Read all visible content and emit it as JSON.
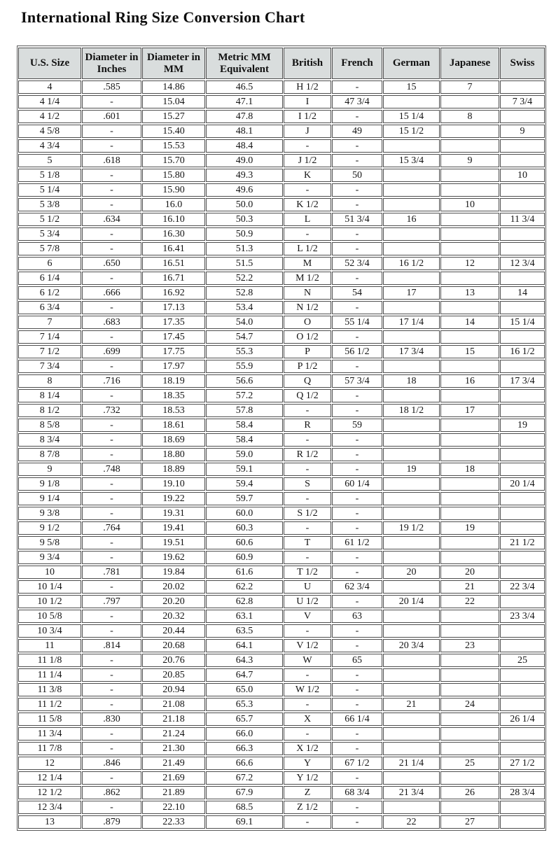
{
  "title": "International Ring Size Conversion Chart",
  "table": {
    "headers": [
      "U.S. Size",
      "Diameter in Inches",
      "Diameter in MM",
      "Metric MM Equivalent",
      "British",
      "French",
      "German",
      "Japanese",
      "Swiss"
    ],
    "rows": [
      [
        "4",
        ".585",
        "14.86",
        "46.5",
        "H 1/2",
        "-",
        "15",
        "7",
        ""
      ],
      [
        "4 1/4",
        "-",
        "15.04",
        "47.1",
        "I",
        "47 3/4",
        "",
        "",
        "7 3/4"
      ],
      [
        "4 1/2",
        ".601",
        "15.27",
        "47.8",
        "I 1/2",
        "-",
        "15 1/4",
        "8",
        ""
      ],
      [
        "4 5/8",
        "-",
        "15.40",
        "48.1",
        "J",
        "49",
        "15 1/2",
        "",
        "9"
      ],
      [
        "4 3/4",
        "-",
        "15.53",
        "48.4",
        "-",
        "-",
        "",
        "",
        ""
      ],
      [
        "5",
        ".618",
        "15.70",
        "49.0",
        "J 1/2",
        "-",
        "15 3/4",
        "9",
        ""
      ],
      [
        "5 1/8",
        "-",
        "15.80",
        "49.3",
        "K",
        "50",
        "",
        "",
        "10"
      ],
      [
        "5 1/4",
        "-",
        "15.90",
        "49.6",
        "-",
        "-",
        "",
        "",
        ""
      ],
      [
        "5 3/8",
        "-",
        "16.0",
        "50.0",
        "K 1/2",
        "-",
        "",
        "10",
        ""
      ],
      [
        "5 1/2",
        ".634",
        "16.10",
        "50.3",
        "L",
        "51 3/4",
        "16",
        "",
        "11 3/4"
      ],
      [
        "5 3/4",
        "-",
        "16.30",
        "50.9",
        "-",
        "-",
        "",
        "",
        ""
      ],
      [
        "5 7/8",
        "-",
        "16.41",
        "51.3",
        "L 1/2",
        "-",
        "",
        "",
        ""
      ],
      [
        "6",
        ".650",
        "16.51",
        "51.5",
        "M",
        "52 3/4",
        "16 1/2",
        "12",
        "12 3/4"
      ],
      [
        "6 1/4",
        "-",
        "16.71",
        "52.2",
        "M 1/2",
        "-",
        "",
        "",
        ""
      ],
      [
        "6 1/2",
        ".666",
        "16.92",
        "52.8",
        "N",
        "54",
        "17",
        "13",
        "14"
      ],
      [
        "6 3/4",
        "-",
        "17.13",
        "53.4",
        "N 1/2",
        "-",
        "",
        "",
        ""
      ],
      [
        "7",
        ".683",
        "17.35",
        "54.0",
        "O",
        "55 1/4",
        "17 1/4",
        "14",
        "15 1/4"
      ],
      [
        "7 1/4",
        "-",
        "17.45",
        "54.7",
        "O 1/2",
        "-",
        "",
        "",
        ""
      ],
      [
        "7 1/2",
        ".699",
        "17.75",
        "55.3",
        "P",
        "56 1/2",
        "17 3/4",
        "15",
        "16 1/2"
      ],
      [
        "7 3/4",
        "-",
        "17.97",
        "55.9",
        "P 1/2",
        "-",
        "",
        "",
        ""
      ],
      [
        "8",
        ".716",
        "18.19",
        "56.6",
        "Q",
        "57 3/4",
        "18",
        "16",
        "17 3/4"
      ],
      [
        "8 1/4",
        "-",
        "18.35",
        "57.2",
        "Q 1/2",
        "-",
        "",
        "",
        ""
      ],
      [
        "8 1/2",
        ".732",
        "18.53",
        "57.8",
        "-",
        "-",
        "18 1/2",
        "17",
        ""
      ],
      [
        "8 5/8",
        "-",
        "18.61",
        "58.4",
        "R",
        "59",
        "",
        "",
        "19"
      ],
      [
        "8 3/4",
        "-",
        "18.69",
        "58.4",
        "-",
        "-",
        "",
        "",
        ""
      ],
      [
        "8 7/8",
        "-",
        "18.80",
        "59.0",
        "R 1/2",
        "-",
        "",
        "",
        ""
      ],
      [
        "9",
        ".748",
        "18.89",
        "59.1",
        "-",
        "-",
        "19",
        "18",
        ""
      ],
      [
        "9 1/8",
        "-",
        "19.10",
        "59.4",
        "S",
        "60 1/4",
        "",
        "",
        "20 1/4"
      ],
      [
        "9 1/4",
        "-",
        "19.22",
        "59.7",
        "-",
        "-",
        "",
        "",
        ""
      ],
      [
        "9 3/8",
        "-",
        "19.31",
        "60.0",
        "S 1/2",
        "-",
        "",
        "",
        ""
      ],
      [
        "9 1/2",
        ".764",
        "19.41",
        "60.3",
        "-",
        "-",
        "19 1/2",
        "19",
        ""
      ],
      [
        "9 5/8",
        "-",
        "19.51",
        "60.6",
        "T",
        "61 1/2",
        "",
        "",
        "21 1/2"
      ],
      [
        "9 3/4",
        "-",
        "19.62",
        "60.9",
        "-",
        "-",
        "",
        "",
        ""
      ],
      [
        "10",
        ".781",
        "19.84",
        "61.6",
        "T 1/2",
        "-",
        "20",
        "20",
        ""
      ],
      [
        "10 1/4",
        "-",
        "20.02",
        "62.2",
        "U",
        "62 3/4",
        "",
        "21",
        "22 3/4"
      ],
      [
        "10 1/2",
        ".797",
        "20.20",
        "62.8",
        "U 1/2",
        "-",
        "20 1/4",
        "22",
        ""
      ],
      [
        "10 5/8",
        "-",
        "20.32",
        "63.1",
        "V",
        "63",
        "",
        "",
        "23 3/4"
      ],
      [
        "10 3/4",
        "-",
        "20.44",
        "63.5",
        "-",
        "-",
        "",
        "",
        ""
      ],
      [
        "11",
        ".814",
        "20.68",
        "64.1",
        "V 1/2",
        "-",
        "20 3/4",
        "23",
        ""
      ],
      [
        "11 1/8",
        "-",
        "20.76",
        "64.3",
        "W",
        "65",
        "",
        "",
        "25"
      ],
      [
        "11 1/4",
        "-",
        "20.85",
        "64.7",
        "-",
        "-",
        "",
        "",
        ""
      ],
      [
        "11 3/8",
        "-",
        "20.94",
        "65.0",
        "W 1/2",
        "-",
        "",
        "",
        ""
      ],
      [
        "11 1/2",
        "-",
        "21.08",
        "65.3",
        "-",
        "-",
        "21",
        "24",
        ""
      ],
      [
        "11 5/8",
        ".830",
        "21.18",
        "65.7",
        "X",
        "66 1/4",
        "",
        "",
        "26 1/4"
      ],
      [
        "11 3/4",
        "-",
        "21.24",
        "66.0",
        "-",
        "-",
        "",
        "",
        ""
      ],
      [
        "11 7/8",
        "-",
        "21.30",
        "66.3",
        "X 1/2",
        "-",
        "",
        "",
        ""
      ],
      [
        "12",
        ".846",
        "21.49",
        "66.6",
        "Y",
        "67 1/2",
        "21 1/4",
        "25",
        "27 1/2"
      ],
      [
        "12 1/4",
        "-",
        "21.69",
        "67.2",
        "Y 1/2",
        "-",
        "",
        "",
        ""
      ],
      [
        "12 1/2",
        ".862",
        "21.89",
        "67.9",
        "Z",
        "68 3/4",
        "21 3/4",
        "26",
        "28 3/4"
      ],
      [
        "12 3/4",
        "-",
        "22.10",
        "68.5",
        "Z 1/2",
        "-",
        "",
        "",
        ""
      ],
      [
        "13",
        ".879",
        "22.33",
        "69.1",
        "-",
        "-",
        "22",
        "27",
        ""
      ]
    ]
  },
  "colors": {
    "header_background": "#d9dddd",
    "border": "#4e4e4e",
    "text": "#141414",
    "page_background": "#ffffff"
  }
}
